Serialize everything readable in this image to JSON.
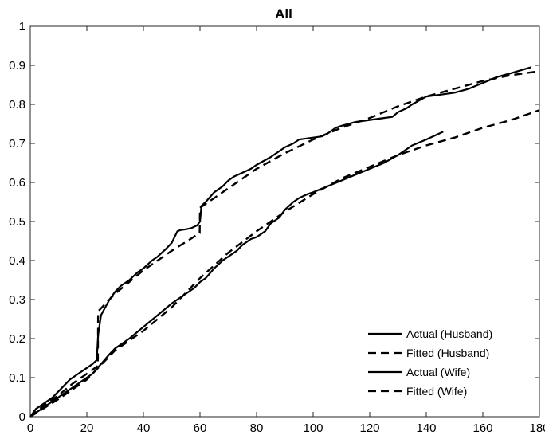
{
  "chart_data": {
    "type": "line",
    "title": "All",
    "xlabel": "",
    "ylabel": "",
    "xlim": [
      0,
      180
    ],
    "ylim": [
      0,
      1
    ],
    "xticks": [
      0,
      20,
      40,
      60,
      80,
      100,
      120,
      140,
      160,
      180
    ],
    "yticks": [
      0,
      0.1,
      0.2,
      0.3,
      0.4,
      0.5,
      0.6,
      0.7,
      0.8,
      0.9,
      1
    ],
    "grid": false,
    "legend_position": "bottom-right",
    "series": [
      {
        "name": "Actual (Husband)",
        "style": "solid",
        "color": "#000000",
        "x": [
          0,
          2,
          5,
          8,
          10,
          12,
          14,
          17,
          20,
          22,
          23.5,
          24,
          25,
          28,
          30,
          32,
          35,
          38,
          40,
          43,
          45,
          48,
          50,
          52,
          53,
          55,
          57,
          59,
          60,
          60.5,
          62,
          65,
          68,
          70,
          72,
          75,
          78,
          80,
          85,
          90,
          93,
          95,
          100,
          103,
          105,
          108,
          110,
          115,
          120,
          125,
          128,
          130,
          133,
          135,
          140,
          145,
          150,
          155,
          160,
          165,
          170,
          177
        ],
        "y": [
          0,
          0.02,
          0.035,
          0.05,
          0.065,
          0.08,
          0.095,
          0.11,
          0.125,
          0.135,
          0.145,
          0.21,
          0.26,
          0.3,
          0.32,
          0.335,
          0.35,
          0.37,
          0.38,
          0.4,
          0.41,
          0.43,
          0.445,
          0.475,
          0.478,
          0.48,
          0.483,
          0.49,
          0.5,
          0.54,
          0.55,
          0.575,
          0.59,
          0.605,
          0.615,
          0.625,
          0.635,
          0.645,
          0.665,
          0.69,
          0.7,
          0.71,
          0.715,
          0.718,
          0.725,
          0.74,
          0.745,
          0.755,
          0.76,
          0.765,
          0.768,
          0.78,
          0.79,
          0.8,
          0.82,
          0.825,
          0.83,
          0.84,
          0.855,
          0.87,
          0.88,
          0.895
        ]
      },
      {
        "name": "Fitted (Husband)",
        "style": "dashed",
        "color": "#000000",
        "x": [
          0,
          5,
          10,
          15,
          20,
          23.9,
          24,
          30,
          40,
          50,
          59.9,
          60,
          70,
          80,
          90,
          100,
          110,
          120,
          130,
          140,
          150,
          160,
          170,
          180
        ],
        "y": [
          0,
          0.03,
          0.055,
          0.085,
          0.11,
          0.13,
          0.27,
          0.315,
          0.375,
          0.425,
          0.47,
          0.535,
          0.585,
          0.635,
          0.675,
          0.71,
          0.74,
          0.765,
          0.795,
          0.82,
          0.84,
          0.86,
          0.875,
          0.885
        ]
      },
      {
        "name": "Actual (Wife)",
        "style": "solid",
        "color": "#000000",
        "x": [
          0,
          3,
          6,
          10,
          15,
          20,
          22,
          25,
          28,
          30,
          35,
          40,
          45,
          50,
          55,
          58,
          60,
          62,
          65,
          68,
          70,
          73,
          75,
          78,
          80,
          83,
          85,
          88,
          90,
          93,
          95,
          98,
          100,
          105,
          110,
          115,
          120,
          125,
          130,
          135,
          140,
          146
        ],
        "y": [
          0,
          0.015,
          0.03,
          0.05,
          0.075,
          0.1,
          0.11,
          0.135,
          0.16,
          0.175,
          0.2,
          0.23,
          0.26,
          0.29,
          0.315,
          0.33,
          0.345,
          0.355,
          0.38,
          0.4,
          0.41,
          0.425,
          0.44,
          0.455,
          0.46,
          0.475,
          0.495,
          0.51,
          0.53,
          0.55,
          0.56,
          0.57,
          0.575,
          0.59,
          0.605,
          0.62,
          0.635,
          0.65,
          0.67,
          0.695,
          0.71,
          0.73
        ]
      },
      {
        "name": "Fitted (Wife)",
        "style": "dashed",
        "color": "#000000",
        "x": [
          0,
          10,
          20,
          30,
          40,
          50,
          60,
          70,
          80,
          90,
          100,
          110,
          120,
          130,
          140,
          150,
          160,
          170,
          180
        ],
        "y": [
          0,
          0.045,
          0.095,
          0.17,
          0.22,
          0.28,
          0.355,
          0.42,
          0.475,
          0.525,
          0.57,
          0.61,
          0.64,
          0.67,
          0.695,
          0.715,
          0.74,
          0.76,
          0.785
        ]
      }
    ]
  }
}
